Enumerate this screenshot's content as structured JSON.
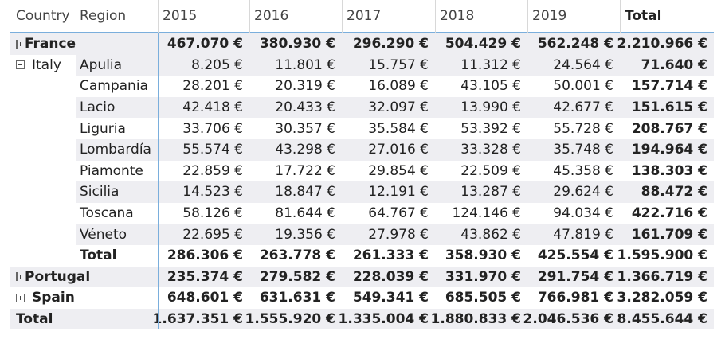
{
  "header": {
    "country": "Country",
    "region": "Region",
    "years": [
      "2015",
      "2016",
      "2017",
      "2018",
      "2019"
    ],
    "total": "Total"
  },
  "rows": {
    "france": {
      "country": "France",
      "values": [
        "467.070 €",
        "380.930 €",
        "296.290 €",
        "504.429 €",
        "562.248 €"
      ],
      "total": "2.210.966 €"
    },
    "italy": {
      "country": "Italy",
      "regions": [
        {
          "name": "Apulia",
          "values": [
            "8.205 €",
            "11.801 €",
            "15.757 €",
            "11.312 €",
            "24.564 €"
          ],
          "total": "71.640 €"
        },
        {
          "name": "Campania",
          "values": [
            "28.201 €",
            "20.319 €",
            "16.089 €",
            "43.105 €",
            "50.001 €"
          ],
          "total": "157.714 €"
        },
        {
          "name": "Lacio",
          "values": [
            "42.418 €",
            "20.433 €",
            "32.097 €",
            "13.990 €",
            "42.677 €"
          ],
          "total": "151.615 €"
        },
        {
          "name": "Liguria",
          "values": [
            "33.706 €",
            "30.357 €",
            "35.584 €",
            "53.392 €",
            "55.728 €"
          ],
          "total": "208.767 €"
        },
        {
          "name": "Lombardía",
          "values": [
            "55.574 €",
            "43.298 €",
            "27.016 €",
            "33.328 €",
            "35.748 €"
          ],
          "total": "194.964 €"
        },
        {
          "name": "Piamonte",
          "values": [
            "22.859 €",
            "17.722 €",
            "29.854 €",
            "22.509 €",
            "45.358 €"
          ],
          "total": "138.303 €"
        },
        {
          "name": "Sicilia",
          "values": [
            "14.523 €",
            "18.847 €",
            "12.191 €",
            "13.287 €",
            "29.624 €"
          ],
          "total": "88.472 €"
        },
        {
          "name": "Toscana",
          "values": [
            "58.126 €",
            "81.644 €",
            "64.767 €",
            "124.146 €",
            "94.034 €"
          ],
          "total": "422.716 €"
        },
        {
          "name": "Véneto",
          "values": [
            "22.695 €",
            "19.356 €",
            "27.978 €",
            "43.862 €",
            "47.819 €"
          ],
          "total": "161.709 €"
        }
      ],
      "subtotal_label": "Total",
      "subtotal_values": [
        "286.306 €",
        "263.778 €",
        "261.333 €",
        "358.930 €",
        "425.554 €"
      ],
      "subtotal_total": "1.595.900 €"
    },
    "portugal": {
      "country": "Portugal",
      "values": [
        "235.374 €",
        "279.582 €",
        "228.039 €",
        "331.970 €",
        "291.754 €"
      ],
      "total": "1.366.719 €"
    },
    "spain": {
      "country": "Spain",
      "values": [
        "648.601 €",
        "631.631 €",
        "549.341 €",
        "685.505 €",
        "766.981 €"
      ],
      "total": "3.282.059 €"
    }
  },
  "grand_total": {
    "label": "Total",
    "values": [
      "1.637.351 €",
      "1.555.920 €",
      "1.335.004 €",
      "1.880.833 €",
      "2.046.536 €"
    ],
    "total": "8.455.644 €"
  },
  "colors": {
    "accent_line": "#7aaedc",
    "stripe": "#eeeef2",
    "grid": "#d8d8d8"
  }
}
